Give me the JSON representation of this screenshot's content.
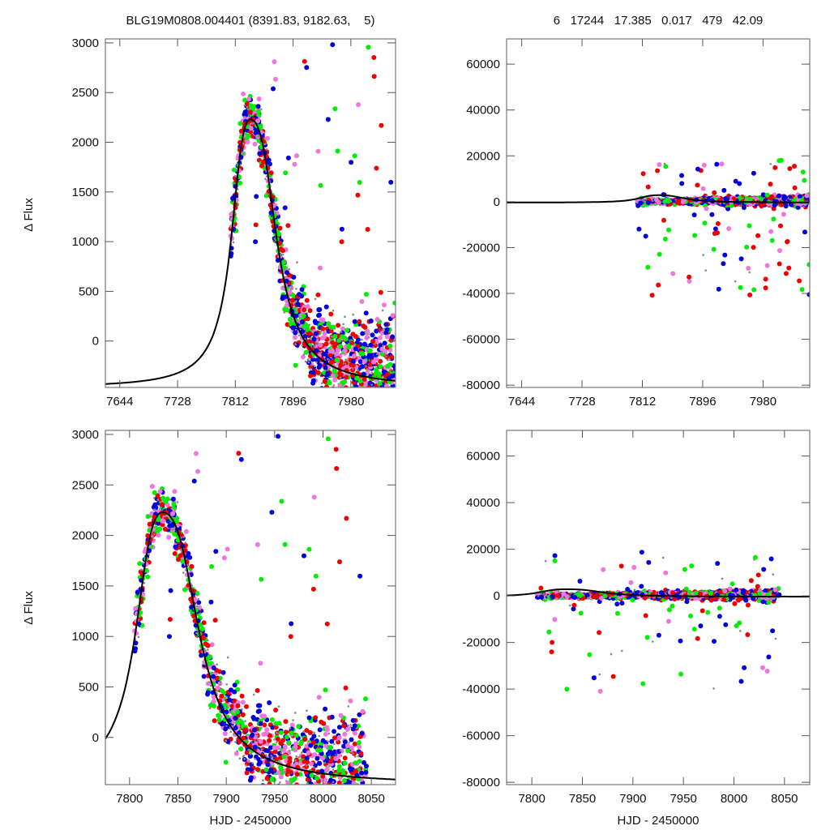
{
  "header": {
    "left_title": "BLG19M0808.004401 (8391.83, 9182.63,    5)",
    "right_title": "6   17244   17.385   0.017   479   42.09"
  },
  "colors": {
    "series": [
      "#0000dd",
      "#ee0000",
      "#00ee00",
      "#ee77dd",
      "#888888"
    ],
    "model": "#000000"
  },
  "chart_data": [
    {
      "id": "top-left",
      "type": "scatter",
      "title": "BLG19M0808.004401 (8391.83, 9182.63,    5)",
      "xlabel": "",
      "ylabel": "Δ Flux",
      "xlim": [
        7623,
        8045
      ],
      "ylim": [
        -467,
        3040
      ],
      "xticks": [
        7644,
        7728,
        7812,
        7896,
        7980
      ],
      "yticks": [
        0,
        500,
        1000,
        1500,
        2000,
        2500,
        3000
      ],
      "model": {
        "t0": 7834,
        "peak": 2230,
        "baseline": -470,
        "rise_width": 22,
        "fall_width": 30
      },
      "grid": false
    },
    {
      "id": "top-right",
      "type": "scatter",
      "title": "6   17244   17.385   0.017   479   42.09",
      "xlabel": "",
      "ylabel": "",
      "xlim": [
        7623,
        8045
      ],
      "ylim": [
        -81000,
        71000
      ],
      "xticks": [
        7644,
        7728,
        7812,
        7896,
        7980
      ],
      "yticks": [
        -80000,
        -60000,
        -40000,
        -20000,
        0,
        20000,
        40000,
        60000
      ],
      "grid": false
    },
    {
      "id": "bottom-left",
      "type": "scatter",
      "xlabel": "HJD - 2450000",
      "ylabel": "Δ Flux",
      "xlim": [
        7775,
        8075
      ],
      "ylim": [
        -467,
        3040
      ],
      "xticks": [
        7800,
        7850,
        7900,
        7950,
        8000,
        8050
      ],
      "yticks": [
        0,
        500,
        1000,
        1500,
        2000,
        2500,
        3000
      ],
      "grid": false
    },
    {
      "id": "bottom-right",
      "type": "scatter",
      "xlabel": "HJD - 2450000",
      "ylabel": "",
      "xlim": [
        7775,
        8075
      ],
      "ylim": [
        -81000,
        71000
      ],
      "xticks": [
        7800,
        7850,
        7900,
        7950,
        8000,
        8050
      ],
      "yticks": [
        -80000,
        -60000,
        -40000,
        -20000,
        0,
        20000,
        40000,
        60000
      ],
      "grid": false
    }
  ]
}
